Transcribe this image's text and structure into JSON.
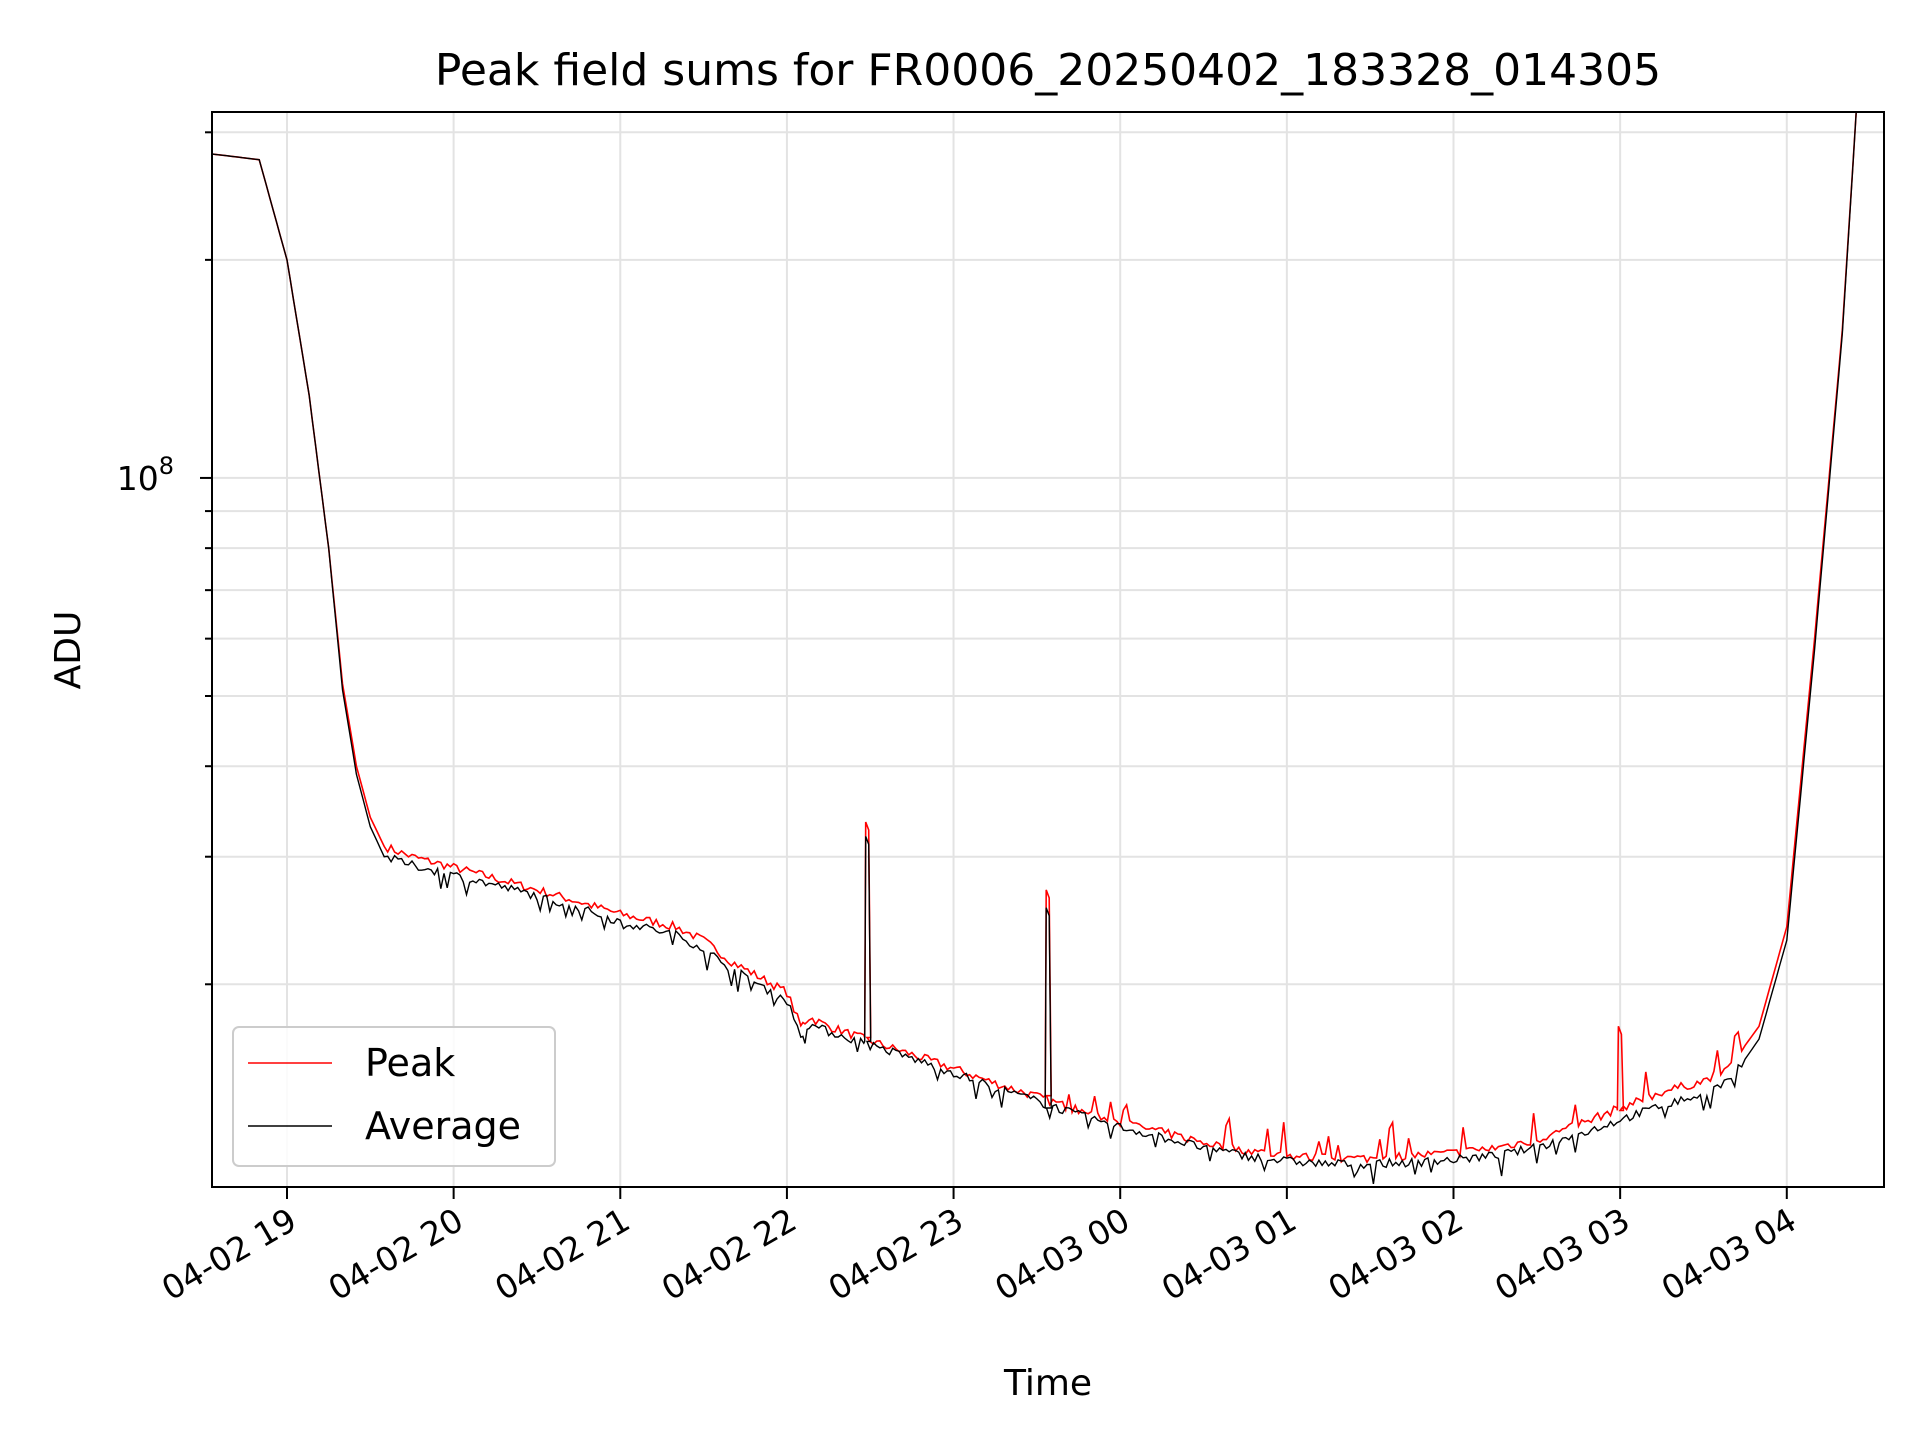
{
  "chart_data": {
    "type": "line",
    "title": "Peak field sums for FR0006_20250402_183328_014305",
    "xlabel": "Time",
    "ylabel": "ADU",
    "yscale": "log",
    "ylim": [
      10500000,
      320000000
    ],
    "xlim": [
      "04-02 18:33",
      "04-03 04:35"
    ],
    "x_tick_labels": [
      "04-02 19",
      "04-02 20",
      "04-02 21",
      "04-02 22",
      "04-02 23",
      "04-03 00",
      "04-03 01",
      "04-03 02",
      "04-03 03",
      "04-03 04"
    ],
    "y_major_tick_label_base": "10",
    "y_major_tick_label_exp": "8",
    "grid": true,
    "legend_position": "lower-left",
    "colors": {
      "Peak": "#ff0000",
      "Average": "#000000"
    },
    "x": [
      "04-02 18:33",
      "04-02 18:50",
      "04-02 19:00",
      "04-02 19:08",
      "04-02 19:15",
      "04-02 19:20",
      "04-02 19:25",
      "04-02 19:30",
      "04-02 19:35",
      "04-02 19:45",
      "04-02 20:00",
      "04-02 20:15",
      "04-02 20:30",
      "04-02 20:45",
      "04-02 21:00",
      "04-02 21:20",
      "04-02 21:30",
      "04-02 21:40",
      "04-02 22:00",
      "04-02 22:05",
      "04-02 22:08",
      "04-02 22:15",
      "04-02 22:30",
      "04-02 22:45",
      "04-02 23:00",
      "04-02 23:15",
      "04-02 23:30",
      "04-02 23:45",
      "04-03 00:00",
      "04-03 00:15",
      "04-03 00:30",
      "04-03 00:45",
      "04-03 01:00",
      "04-03 01:15",
      "04-03 01:30",
      "04-03 01:45",
      "04-03 02:00",
      "04-03 02:15",
      "04-03 02:30",
      "04-03 02:45",
      "04-03 03:00",
      "04-03 03:15",
      "04-03 03:30",
      "04-03 03:40",
      "04-03 03:50",
      "04-03 04:00",
      "04-03 04:10",
      "04-03 04:20",
      "04-03 04:25"
    ],
    "series": [
      {
        "name": "Peak",
        "values": [
          280000000,
          275000000,
          200000000,
          130000000,
          80000000,
          52000000,
          40000000,
          34000000,
          31000000,
          30000000,
          29000000,
          28000000,
          27000000,
          26000000,
          25000000,
          24000000,
          23000000,
          21500000,
          19500000,
          17500000,
          18000000,
          17500000,
          16700000,
          16000000,
          15300000,
          14600000,
          14000000,
          13400000,
          12900000,
          12500000,
          12100000,
          11800000,
          11600000,
          11500000,
          11500000,
          11600000,
          11700000,
          11900000,
          12200000,
          12800000,
          13500000,
          14200000,
          14700000,
          15500000,
          17500000,
          24000000,
          60000000,
          160000000,
          320000000
        ]
      },
      {
        "name": "Average",
        "values": [
          280000000,
          275000000,
          200000000,
          130000000,
          80000000,
          51000000,
          39000000,
          33000000,
          30000000,
          29200000,
          28300000,
          27400000,
          26500000,
          25500000,
          24400000,
          23400000,
          22400000,
          21000000,
          19000000,
          17000000,
          17600000,
          17200000,
          16500000,
          15800000,
          15100000,
          14400000,
          13800000,
          13200000,
          12700000,
          12300000,
          11900000,
          11600000,
          11400000,
          11300000,
          11300000,
          11350000,
          11450000,
          11600000,
          11900000,
          12400000,
          13000000,
          13600000,
          14100000,
          14800000,
          16800000,
          23000000,
          58000000,
          158000000,
          320000000
        ]
      }
    ],
    "spikes": [
      {
        "series": "Peak",
        "x": "04-02 22:28",
        "value": 33500000
      },
      {
        "series": "Average",
        "x": "04-02 22:28",
        "value": 32000000
      },
      {
        "series": "Peak",
        "x": "04-02 23:33",
        "value": 27000000
      },
      {
        "series": "Average",
        "x": "04-02 23:33",
        "value": 25500000
      },
      {
        "series": "Peak",
        "x": "04-03 02:59",
        "value": 17500000
      }
    ]
  }
}
